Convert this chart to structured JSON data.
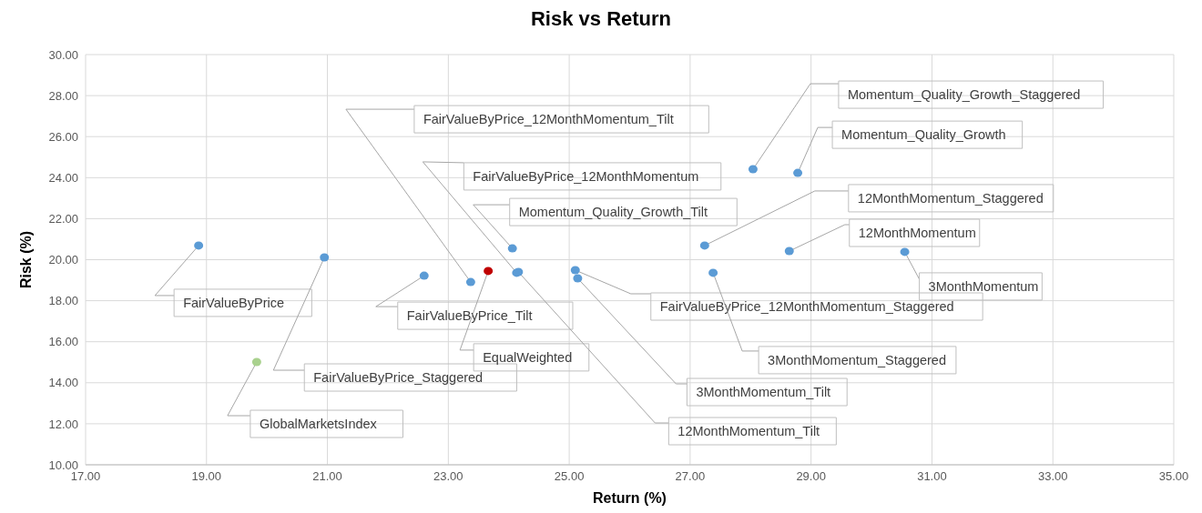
{
  "chart_data": {
    "type": "scatter",
    "title": "Risk vs Return",
    "xlabel": "Return (%)",
    "ylabel": "Risk (%)",
    "xlim": [
      17,
      35
    ],
    "xticks": [
      {
        "value": 17,
        "label": "17.00"
      },
      {
        "value": 19,
        "label": "19.00"
      },
      {
        "value": 21,
        "label": "21.00"
      },
      {
        "value": 23,
        "label": "23.00"
      },
      {
        "value": 25,
        "label": "25.00"
      },
      {
        "value": 27,
        "label": "27.00"
      },
      {
        "value": 29,
        "label": "29.00"
      },
      {
        "value": 31,
        "label": "31.00"
      },
      {
        "value": 33,
        "label": "33.00"
      },
      {
        "value": 35,
        "label": "35.00"
      }
    ],
    "ylim": [
      10,
      30
    ],
    "yticks": [
      {
        "value": 10,
        "label": "10.00"
      },
      {
        "value": 12,
        "label": "12.00"
      },
      {
        "value": 14,
        "label": "14.00"
      },
      {
        "value": 16,
        "label": "16.00"
      },
      {
        "value": 18,
        "label": "18.00"
      },
      {
        "value": 20,
        "label": "20.00"
      },
      {
        "value": 22,
        "label": "22.00"
      },
      {
        "value": 24,
        "label": "24.00"
      },
      {
        "value": 26,
        "label": "26.00"
      },
      {
        "value": 28,
        "label": "28.00"
      },
      {
        "value": 30,
        "label": "30.00"
      }
    ],
    "grid": true,
    "legend": false,
    "marker": "circle",
    "x": [
      18.87,
      19.83,
      20.95,
      22.6,
      23.37,
      23.66,
      24.06,
      24.13,
      24.16,
      25.1,
      25.14,
      27.24,
      27.38,
      28.04,
      28.78,
      28.64,
      30.55
    ],
    "values": [
      20.69,
      15.01,
      20.11,
      19.22,
      18.91,
      19.45,
      20.55,
      19.36,
      19.4,
      19.49,
      19.09,
      20.69,
      19.36,
      24.41,
      24.23,
      20.42,
      20.38
    ],
    "colors": [
      "#5b9bd5",
      "#a9d18e",
      "#5b9bd5",
      "#5b9bd5",
      "#5b9bd5",
      "#c00000",
      "#5b9bd5",
      "#5b9bd5",
      "#5b9bd5",
      "#5b9bd5",
      "#5b9bd5",
      "#5b9bd5",
      "#5b9bd5",
      "#5b9bd5",
      "#5b9bd5",
      "#5b9bd5",
      "#5b9bd5"
    ],
    "annotations": [
      {
        "text": "FairValueByPrice",
        "x": 18.87,
        "y": 20.69
      },
      {
        "text": "GlobalMarketsIndex",
        "x": 19.83,
        "y": 15.01
      },
      {
        "text": "FairValueByPrice_Staggered",
        "x": 20.95,
        "y": 20.11
      },
      {
        "text": "FairValueByPrice_Tilt",
        "x": 22.6,
        "y": 19.22
      },
      {
        "text": "FairValueByPrice_12MonthMomentum_Tilt",
        "x": 23.37,
        "y": 18.91
      },
      {
        "text": "EqualWeighted",
        "x": 23.66,
        "y": 19.45
      },
      {
        "text": "Momentum_Quality_Growth_Tilt",
        "x": 24.06,
        "y": 20.55
      },
      {
        "text": "FairValueByPrice_12MonthMomentum",
        "x": 24.13,
        "y": 19.36
      },
      {
        "text": "12MonthMomentum_Tilt",
        "x": 24.16,
        "y": 19.4
      },
      {
        "text": "FairValueByPrice_12MonthMomentum_Staggered",
        "x": 25.1,
        "y": 19.49
      },
      {
        "text": "3MonthMomentum_Tilt",
        "x": 25.14,
        "y": 19.09
      },
      {
        "text": "12MonthMomentum_Staggered",
        "x": 27.24,
        "y": 20.69
      },
      {
        "text": "3MonthMomentum_Staggered",
        "x": 27.38,
        "y": 19.36
      },
      {
        "text": "Momentum_Quality_Growth_Staggered",
        "x": 28.04,
        "y": 24.41
      },
      {
        "text": "Momentum_Quality_Growth",
        "x": 28.78,
        "y": 24.23
      },
      {
        "text": "12MonthMomentum",
        "x": 28.64,
        "y": 20.42
      },
      {
        "text": "3MonthMomentum",
        "x": 30.55,
        "y": 20.38
      }
    ]
  }
}
